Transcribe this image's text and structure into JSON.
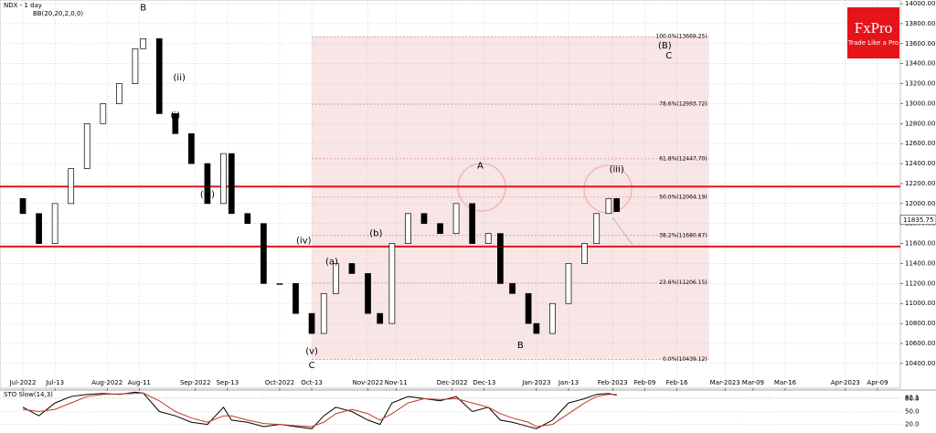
{
  "chart_data": {
    "type": "candlestick",
    "title": "NDX - 1 day",
    "indicator": "BB(20,20,2,0,0)",
    "logo": {
      "brand": "FxPro",
      "tagline": "Trade Like a Pro"
    },
    "last_price": {
      "value": 11835.75,
      "label": "11835.75"
    },
    "xlim": [
      -5.7,
      218.7
    ],
    "ylim": [
      10152,
      14037
    ],
    "xticks": [
      {
        "value": 0,
        "label": "Jul-2022"
      },
      {
        "value": 8,
        "label": "Jul-13"
      },
      {
        "value": 21,
        "label": "Aug-2022"
      },
      {
        "value": 29,
        "label": "Aug-11"
      },
      {
        "value": 43,
        "label": "Sep-2022"
      },
      {
        "value": 51,
        "label": "Sep-13"
      },
      {
        "value": 64,
        "label": "Oct-2022"
      },
      {
        "value": 72,
        "label": "Oct-13"
      },
      {
        "value": 86,
        "label": "Nov-2022"
      },
      {
        "value": 93,
        "label": "Nov-11"
      },
      {
        "value": 107,
        "label": "Dec-2022"
      },
      {
        "value": 115,
        "label": "Dec-13"
      },
      {
        "value": 128,
        "label": "Jan-2023"
      },
      {
        "value": 136,
        "label": "Jan-13"
      },
      {
        "value": 147,
        "label": "Feb-2023"
      },
      {
        "value": 155,
        "label": "Feb-09"
      },
      {
        "value": 163,
        "label": "Feb-16"
      },
      {
        "value": 175,
        "label": "Mar-2023"
      },
      {
        "value": 182,
        "label": "Mar-09"
      },
      {
        "value": 190,
        "label": "Mar-16"
      },
      {
        "value": 205,
        "label": "Apr-2023"
      },
      {
        "value": 213,
        "label": "Apr-09"
      }
    ],
    "yticks": [
      {
        "value": 10400,
        "label": "10400.00"
      },
      {
        "value": 10600,
        "label": "10600.00"
      },
      {
        "value": 10800,
        "label": "10800.00"
      },
      {
        "value": 11000,
        "label": "11000.00"
      },
      {
        "value": 11200,
        "label": "11200.00"
      },
      {
        "value": 11400,
        "label": "11400.00"
      },
      {
        "value": 11600,
        "label": "11600.00"
      },
      {
        "value": 11800,
        "label": "11800.00"
      },
      {
        "value": 12000,
        "label": "12000.00"
      },
      {
        "value": 12200,
        "label": "12200.00"
      },
      {
        "value": 12400,
        "label": "12400.00"
      },
      {
        "value": 12600,
        "label": "12600.00"
      },
      {
        "value": 12800,
        "label": "12800.00"
      },
      {
        "value": 13000,
        "label": "13000.00"
      },
      {
        "value": 13200,
        "label": "13200.00"
      },
      {
        "value": 13400,
        "label": "13400.00"
      },
      {
        "value": 13600,
        "label": "13600.00"
      },
      {
        "value": 13800,
        "label": "13800.00"
      },
      {
        "value": 14000,
        "label": "14000.00"
      }
    ],
    "grid": true,
    "candles": {
      "x": [
        0,
        4,
        8,
        12,
        16,
        20,
        24,
        28,
        30,
        34,
        38,
        42,
        46,
        50,
        52,
        56,
        60,
        64,
        68,
        72,
        75,
        78,
        82,
        86,
        89,
        92,
        96,
        100,
        104,
        108,
        112,
        116,
        119,
        122,
        126,
        128,
        132,
        136,
        140,
        143,
        146,
        148
      ],
      "open": [
        12050,
        11900,
        11600,
        12000,
        12350,
        12800,
        13000,
        13200,
        13550,
        13650,
        12900,
        12700,
        12400,
        12000,
        12500,
        11900,
        11800,
        11200,
        11200,
        10900,
        10700,
        11100,
        11400,
        11300,
        10900,
        10800,
        11600,
        11900,
        11800,
        11700,
        12000,
        11600,
        11700,
        11200,
        11100,
        10800,
        10700,
        11000,
        11400,
        11600,
        11900,
        12050
      ],
      "close": [
        11900,
        11600,
        12000,
        12350,
        12800,
        13000,
        13200,
        13550,
        13650,
        12900,
        12700,
        12400,
        12000,
        12500,
        11900,
        11800,
        11200,
        11200,
        10900,
        10700,
        11100,
        11400,
        11300,
        10900,
        10800,
        11600,
        11900,
        11800,
        11700,
        12000,
        11600,
        11700,
        11200,
        11100,
        10800,
        10700,
        11000,
        11400,
        11600,
        11900,
        12050,
        11920
      ]
    },
    "levels": [
      12170,
      11570
    ],
    "level_color": "#e5141b",
    "fib_range": {
      "x": [
        72,
        171
      ]
    },
    "fib_levels": [
      {
        "value": 13669.25,
        "label": "100.0%(13669.25)"
      },
      {
        "value": 12993.72,
        "label": "78.6%(12993.72)"
      },
      {
        "value": 12447.7,
        "label": "61.8%(12447.70)"
      },
      {
        "value": 12064.19,
        "label": "50.0%(12064.19)"
      },
      {
        "value": 11680.67,
        "label": "38.2%(11680.67)"
      },
      {
        "value": 11206.15,
        "label": "23.6%(11206.15)"
      },
      {
        "value": 10439.12,
        "label": "0.0%(10439.12)"
      }
    ],
    "wave_labels": [
      {
        "text": "B",
        "x": 30,
        "y": 13960
      },
      {
        "text": "(i)",
        "x": 38,
        "y": 12880
      },
      {
        "text": "(ii)",
        "x": 39,
        "y": 13260
      },
      {
        "text": "(iii)",
        "x": 46,
        "y": 12090
      },
      {
        "text": "(iv)",
        "x": 70,
        "y": 11630
      },
      {
        "text": "(v)",
        "x": 72,
        "y": 10520
      },
      {
        "text": "C",
        "x": 72,
        "y": 10380
      },
      {
        "text": "(a)",
        "x": 77,
        "y": 11420
      },
      {
        "text": "(b)",
        "x": 88,
        "y": 11700
      },
      {
        "text": "A",
        "x": 114,
        "y": 12380
      },
      {
        "text": "B",
        "x": 124,
        "y": 10580
      },
      {
        "text": "(iii)",
        "x": 148,
        "y": 12340
      },
      {
        "text": "(B)",
        "x": 160,
        "y": 13580
      },
      {
        "text": "C",
        "x": 161,
        "y": 13480
      }
    ],
    "stochastic": {
      "title": "STO Slow(14,3)",
      "ylim": [
        0,
        100
      ],
      "yticks": [
        {
          "value": 20,
          "label": "20.0"
        },
        {
          "value": 50,
          "label": "50.0"
        },
        {
          "value": 80,
          "label": "80.0"
        },
        {
          "value": 82.1,
          "label": "82.1"
        }
      ],
      "series": [
        {
          "name": "%K",
          "color": "#000000",
          "values": [
            60,
            40,
            70,
            85,
            90,
            92,
            90,
            95,
            93,
            50,
            40,
            25,
            20,
            60,
            30,
            25,
            15,
            20,
            15,
            10,
            40,
            60,
            50,
            30,
            20,
            70,
            85,
            80,
            75,
            85,
            50,
            60,
            30,
            25,
            15,
            10,
            30,
            70,
            80,
            90,
            92,
            88
          ]
        },
        {
          "name": "%D",
          "color": "#c0392b",
          "values": [
            55,
            50,
            55,
            70,
            85,
            90,
            91,
            92,
            93,
            75,
            50,
            35,
            25,
            40,
            40,
            30,
            22,
            20,
            17,
            15,
            25,
            45,
            55,
            45,
            30,
            45,
            70,
            80,
            78,
            80,
            70,
            60,
            45,
            35,
            25,
            15,
            20,
            45,
            70,
            85,
            90,
            90
          ]
        }
      ]
    }
  }
}
